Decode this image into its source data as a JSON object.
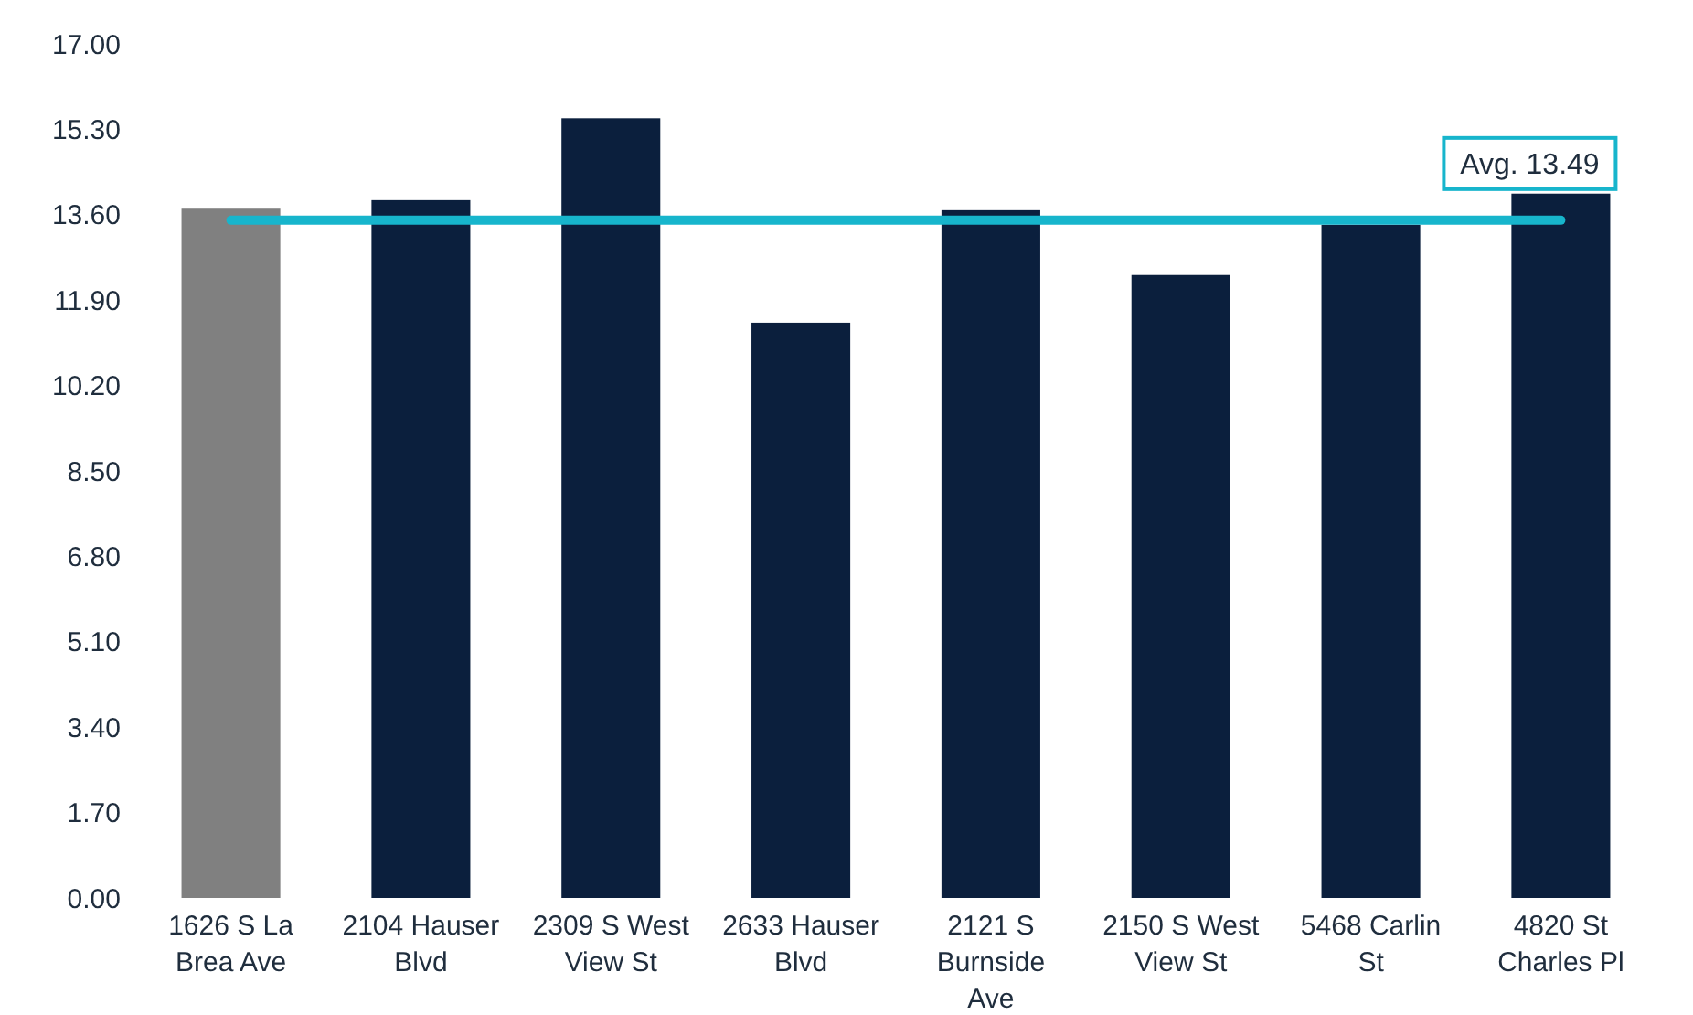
{
  "chart_data": {
    "type": "bar",
    "categories": [
      "1626 S La Brea Ave",
      "2104 Hauser Blvd",
      "2309 S West View St",
      "2633 Hauser Blvd",
      "2121 S Burnside Ave",
      "2150 S West View St",
      "5468 Carlin St",
      "4820 St Charles Pl"
    ],
    "values": [
      13.72,
      13.89,
      15.52,
      11.45,
      13.69,
      12.4,
      13.4,
      14.02
    ],
    "colors": [
      "#808080",
      "#0b1f3d",
      "#0b1f3d",
      "#0b1f3d",
      "#0b1f3d",
      "#0b1f3d",
      "#0b1f3d",
      "#0b1f3d"
    ],
    "ylim": [
      0,
      17
    ],
    "yticks": [
      {
        "value": 0,
        "label": "0.00"
      },
      {
        "value": 1.7,
        "label": "1.70"
      },
      {
        "value": 3.4,
        "label": "3.40"
      },
      {
        "value": 5.1,
        "label": "5.10"
      },
      {
        "value": 6.8,
        "label": "6.80"
      },
      {
        "value": 8.5,
        "label": "8.50"
      },
      {
        "value": 10.2,
        "label": "10.20"
      },
      {
        "value": 11.9,
        "label": "11.90"
      },
      {
        "value": 13.6,
        "label": "13.60"
      },
      {
        "value": 15.3,
        "label": "15.30"
      },
      {
        "value": 17,
        "label": "17.00"
      }
    ],
    "ref_lines": [
      {
        "axis": "y",
        "value": 13.49,
        "label": "Avg. 13.49",
        "color": "#17b5cc"
      }
    ],
    "grid": false
  }
}
